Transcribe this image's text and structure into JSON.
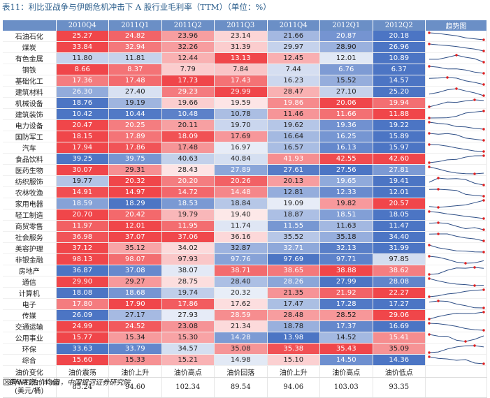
{
  "title": "表11：利比亚战争与伊朗危机冲击下 A 股行业毛利率（TTM）（单位：%）",
  "source": "资料来源：Wind，中国银河证券研究院",
  "header": [
    "",
    "2010Q4",
    "2011Q1",
    "2011Q2",
    "2011Q3",
    "2011Q4",
    "2012Q1",
    "2012Q2",
    "趋势图"
  ],
  "colors": {
    "header_bg": "#6b8fc6",
    "high": "#f0464a",
    "low": "#4c75c4",
    "mid": "#ffffff",
    "spark_line": "#2f4f86",
    "spark_dot": "#e02020"
  },
  "rows": [
    {
      "name": "石油石化",
      "values": [
        25.27,
        24.82,
        23.96,
        23.14,
        21.66,
        20.87,
        20.18
      ]
    },
    {
      "name": "煤炭",
      "values": [
        33.84,
        32.94,
        32.26,
        31.39,
        29.97,
        28.9,
        26.96
      ]
    },
    {
      "name": "有色金属",
      "values": [
        11.8,
        11.81,
        12.44,
        13.13,
        12.45,
        12.01,
        10.89
      ]
    },
    {
      "name": "钢铁",
      "values": [
        8.66,
        8.37,
        7.79,
        7.84,
        7.44,
        6.76,
        6.37
      ]
    },
    {
      "name": "基础化工",
      "values": [
        17.36,
        17.48,
        17.73,
        17.43,
        16.23,
        15.52,
        14.57
      ]
    },
    {
      "name": "建筑材料",
      "values": [
        26.3,
        27.4,
        29.23,
        29.99,
        28.47,
        27.1,
        25.2
      ]
    },
    {
      "name": "机械设备",
      "values": [
        18.76,
        19.19,
        19.66,
        19.59,
        19.86,
        20.06,
        19.94
      ]
    },
    {
      "name": "建筑装饰",
      "values": [
        10.42,
        10.44,
        10.48,
        10.78,
        11.46,
        11.66,
        11.88
      ]
    },
    {
      "name": "电力设备",
      "values": [
        20.47,
        20.25,
        20.11,
        19.7,
        19.62,
        19.36,
        19.22
      ]
    },
    {
      "name": "国防军工",
      "values": [
        18.15,
        17.89,
        18.09,
        17.69,
        16.64,
        16.25,
        15.89
      ]
    },
    {
      "name": "汽车",
      "values": [
        17.94,
        17.86,
        17.48,
        16.97,
        16.57,
        16.13,
        15.97
      ]
    },
    {
      "name": "食品饮料",
      "values": [
        39.25,
        39.75,
        40.63,
        40.84,
        41.93,
        42.55,
        42.6
      ]
    },
    {
      "name": "医药生物",
      "values": [
        30.07,
        29.31,
        28.43,
        27.89,
        27.61,
        27.56,
        27.81
      ]
    },
    {
      "name": "纺织服饰",
      "values": [
        19.77,
        20.32,
        20.2,
        20.26,
        20.13,
        19.65,
        19.41
      ]
    },
    {
      "name": "农林牧渔",
      "values": [
        14.91,
        14.97,
        14.72,
        14.48,
        12.81,
        12.33,
        12.01
      ]
    },
    {
      "name": "家用电器",
      "values": [
        18.59,
        18.29,
        18.53,
        18.84,
        19.09,
        19.82,
        20.57
      ]
    },
    {
      "name": "轻工制造",
      "values": [
        20.7,
        20.42,
        19.79,
        19.4,
        18.87,
        18.51,
        18.05
      ]
    },
    {
      "name": "商贸零售",
      "values": [
        11.97,
        12.01,
        11.95,
        11.74,
        11.55,
        11.63,
        11.47
      ]
    },
    {
      "name": "社会服务",
      "values": [
        36.98,
        37.07,
        37.06,
        36.16,
        35.52,
        35.18,
        34.4
      ]
    },
    {
      "name": "美容护理",
      "values": [
        37.12,
        35.12,
        34.02,
        32.87,
        32.71,
        32.13,
        31.99
      ]
    },
    {
      "name": "非银金融",
      "values": [
        98.13,
        98.07,
        97.93,
        97.76,
        97.69,
        97.71,
        97.85
      ]
    },
    {
      "name": "房地产",
      "values": [
        36.87,
        37.08,
        38.07,
        38.71,
        38.65,
        38.88,
        38.62
      ]
    },
    {
      "name": "通信",
      "values": [
        29.9,
        29.27,
        28.75,
        28.4,
        28.26,
        27.99,
        28.08
      ]
    },
    {
      "name": "计算机",
      "values": [
        18.08,
        18.68,
        19.74,
        20.32,
        21.35,
        21.92,
        22.27
      ]
    },
    {
      "name": "电子",
      "values": [
        17.8,
        17.9,
        17.86,
        17.62,
        17.47,
        17.28,
        17.27
      ]
    },
    {
      "name": "传媒",
      "values": [
        26.09,
        27.17,
        27.93,
        28.59,
        28.48,
        28.52,
        29.06
      ]
    },
    {
      "name": "交通运输",
      "values": [
        24.99,
        24.52,
        23.08,
        21.34,
        18.78,
        17.37,
        16.69
      ]
    },
    {
      "name": "公用事业",
      "values": [
        15.77,
        15.34,
        15.3,
        14.28,
        13.98,
        14.52,
        15.41
      ]
    },
    {
      "name": "环保",
      "values": [
        33.63,
        33.79,
        34.57,
        35.08,
        35.38,
        35.43,
        35.09
      ]
    },
    {
      "name": "综合",
      "values": [
        15.6,
        15.33,
        15.21,
        14.98,
        15.1,
        14.5,
        14.36
      ]
    }
  ],
  "footer": {
    "oil_change": {
      "label": "油价变化",
      "values": [
        "油价震荡",
        "油价上升",
        "油价高点",
        "油价回落",
        "油价上升",
        "油价高点",
        "油价低点"
      ]
    },
    "wti": {
      "label_line1": "区间WTI油价均值",
      "label_line2": "(美元/桶)",
      "values": [
        "85.24",
        "94.60",
        "102.34",
        "89.54",
        "94.06",
        "103.03",
        "93.35"
      ]
    }
  }
}
